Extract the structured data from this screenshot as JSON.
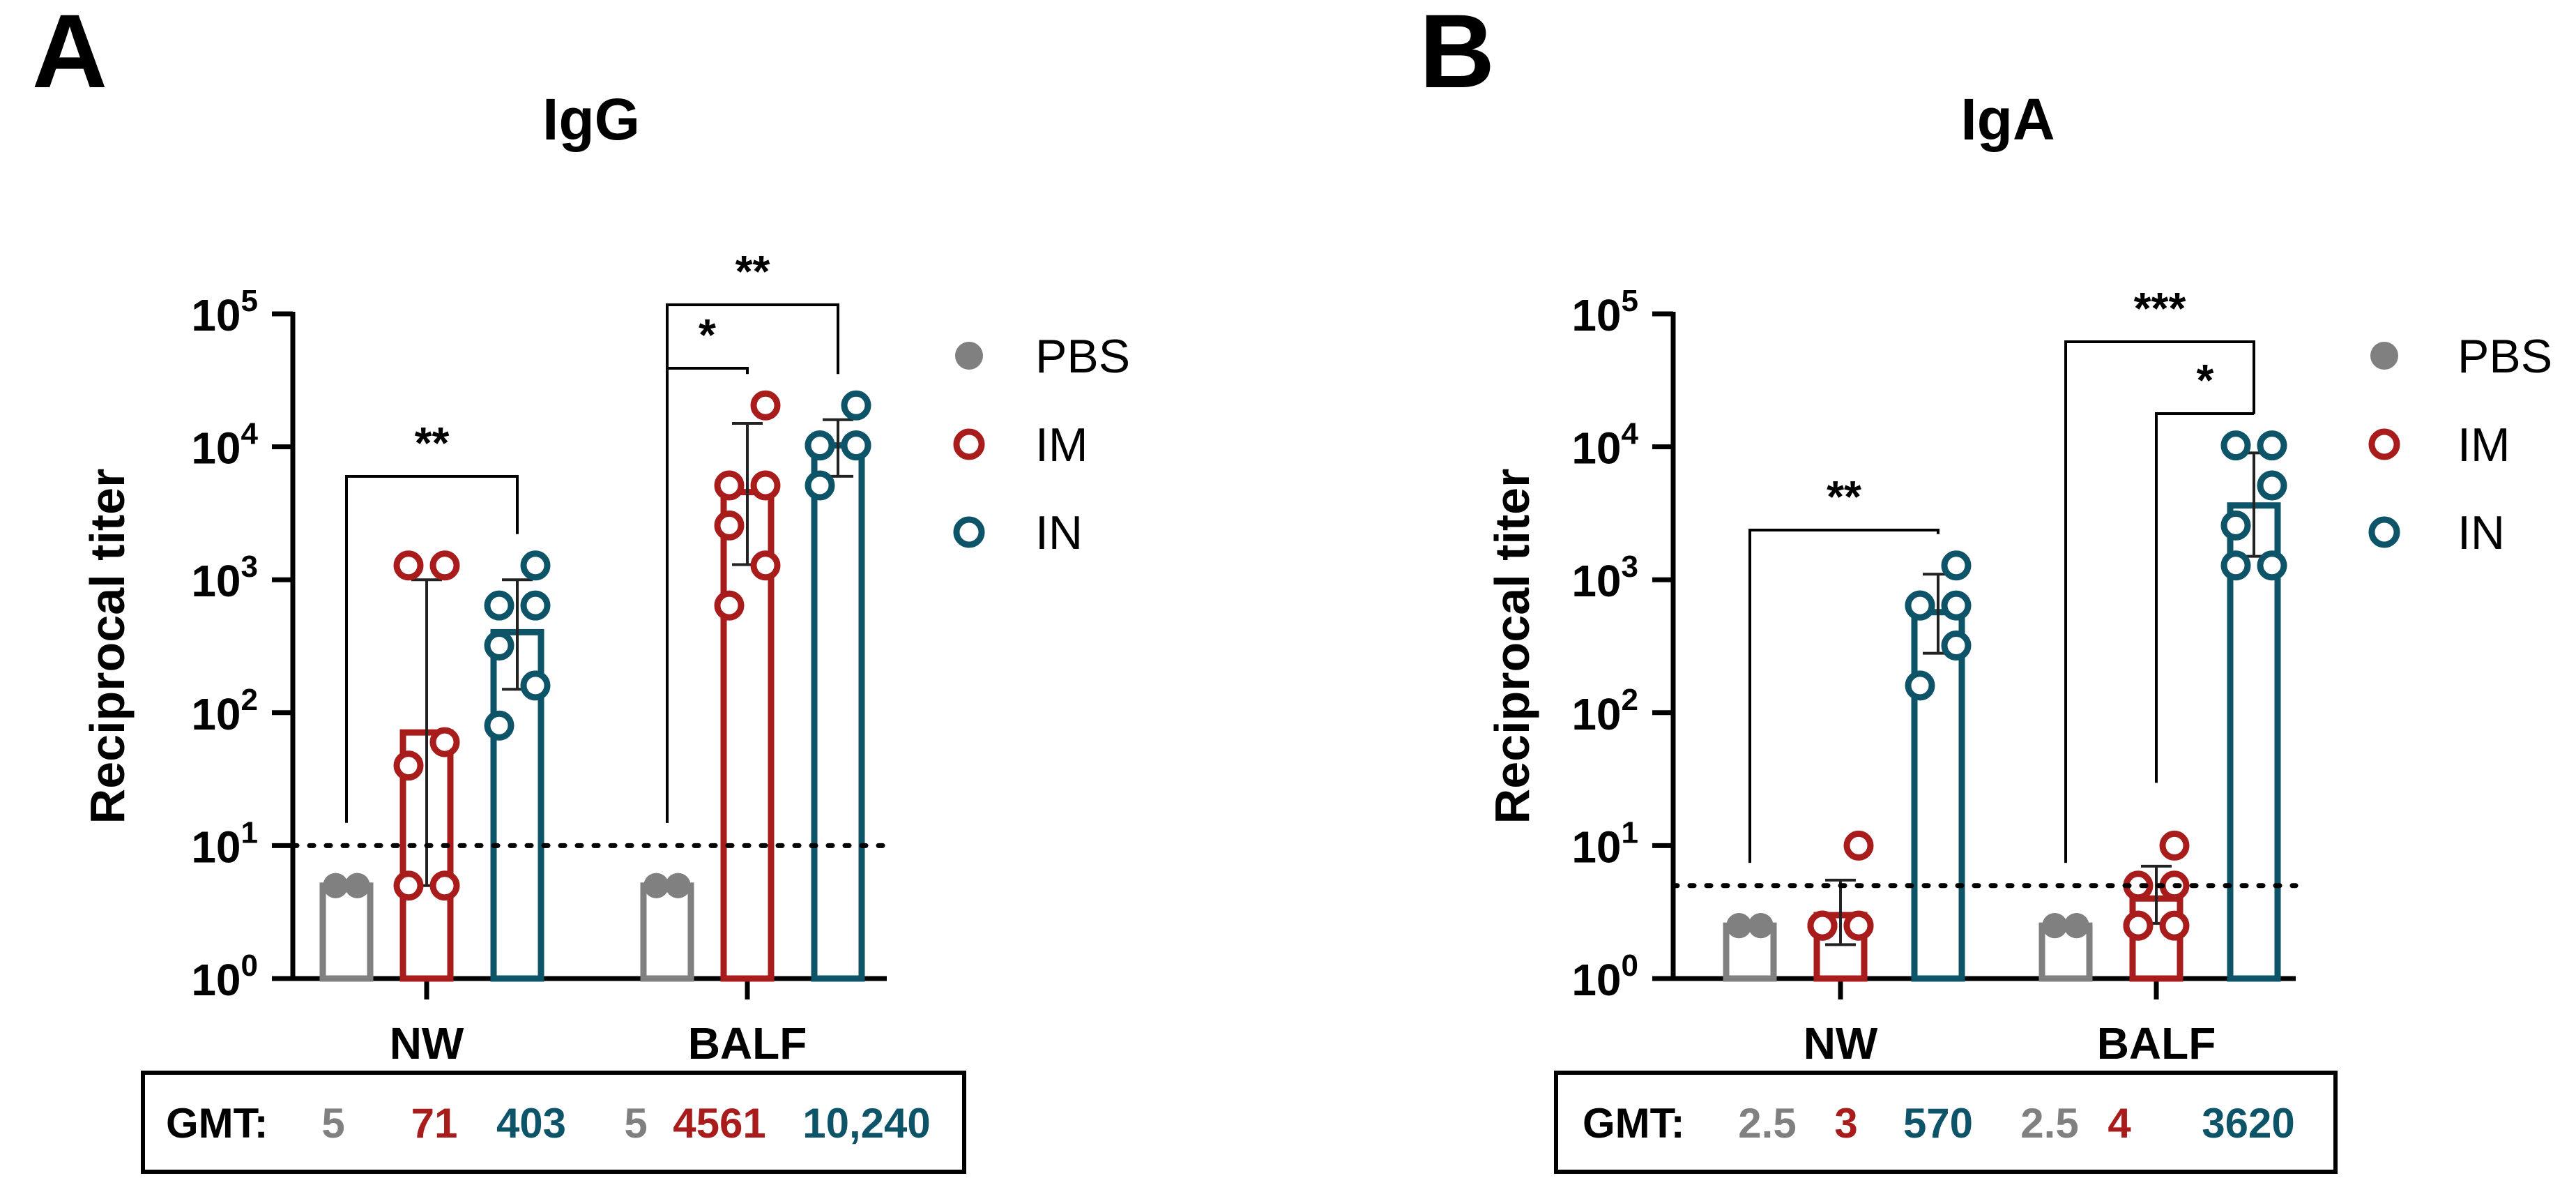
{
  "colors": {
    "pbs": "#808080",
    "im": "#a81c1c",
    "in": "#0e5468",
    "axis": "#000000"
  },
  "chart_data": [
    {
      "type": "bar",
      "panel_label": "A",
      "title": "IgG",
      "ylabel": "Reciprocal titer",
      "xlabel": "",
      "yscale": "log10",
      "ylim": [
        1,
        100000
      ],
      "y_ticks": [
        {
          "base": "10",
          "exp": "0"
        },
        {
          "base": "10",
          "exp": "1"
        },
        {
          "base": "10",
          "exp": "2"
        },
        {
          "base": "10",
          "exp": "3"
        },
        {
          "base": "10",
          "exp": "4"
        },
        {
          "base": "10",
          "exp": "5"
        }
      ],
      "categories": [
        "NW",
        "BALF"
      ],
      "limit_of_detection": 10,
      "series": [
        {
          "name": "PBS",
          "marker": "filled-circle",
          "values": [
            5,
            5
          ],
          "error_low": [
            5,
            5
          ],
          "error_high": [
            5,
            5
          ],
          "points": [
            [
              5,
              5,
              5,
              5,
              5,
              5
            ],
            [
              5,
              5,
              5,
              5,
              5,
              5
            ]
          ]
        },
        {
          "name": "IM",
          "marker": "open-circle",
          "values": [
            71,
            4561
          ],
          "error_low": [
            5,
            1300
          ],
          "error_high": [
            1000,
            15000
          ],
          "points": [
            [
              5,
              5,
              40,
              60,
              1280,
              1280
            ],
            [
              640,
              1280,
              2560,
              5120,
              5120,
              20480
            ]
          ]
        },
        {
          "name": "IN",
          "marker": "open-circle",
          "values": [
            403,
            10240
          ],
          "error_low": [
            150,
            6000
          ],
          "error_high": [
            1000,
            16000
          ],
          "points": [
            [
              80,
              160,
              320,
              640,
              640,
              1280
            ],
            [
              5120,
              10240,
              10240,
              10240,
              10240,
              20480
            ]
          ]
        }
      ],
      "significance": [
        {
          "category": "NW",
          "from": "PBS",
          "to": "IN",
          "label": "**"
        },
        {
          "category": "BALF",
          "from": "PBS",
          "to": "IM",
          "label": "*"
        },
        {
          "category": "BALF",
          "from": "PBS",
          "to": "IN",
          "label": "**"
        }
      ],
      "legend": {
        "position": "right",
        "entries": [
          "PBS",
          "IM",
          "IN"
        ]
      },
      "gmt_table": {
        "label": "GMT:",
        "values": [
          "5",
          "71",
          "403",
          "5",
          "4561",
          "10,240"
        ]
      }
    },
    {
      "type": "bar",
      "panel_label": "B",
      "title": "IgA",
      "ylabel": "Reciprocal titer",
      "xlabel": "",
      "yscale": "log10",
      "ylim": [
        1,
        100000
      ],
      "y_ticks": [
        {
          "base": "10",
          "exp": "0"
        },
        {
          "base": "10",
          "exp": "1"
        },
        {
          "base": "10",
          "exp": "2"
        },
        {
          "base": "10",
          "exp": "3"
        },
        {
          "base": "10",
          "exp": "4"
        },
        {
          "base": "10",
          "exp": "5"
        }
      ],
      "categories": [
        "NW",
        "BALF"
      ],
      "limit_of_detection": 5,
      "series": [
        {
          "name": "PBS",
          "marker": "filled-circle",
          "values": [
            2.5,
            2.5
          ],
          "error_low": [
            2.5,
            2.5
          ],
          "error_high": [
            2.5,
            2.5
          ],
          "points": [
            [
              2.5,
              2.5,
              2.5,
              2.5,
              2.5,
              2.5
            ],
            [
              2.5,
              2.5,
              2.5,
              2.5,
              2.5,
              2.5
            ]
          ]
        },
        {
          "name": "IM",
          "marker": "open-circle",
          "values": [
            3,
            4
          ],
          "error_low": [
            1.8,
            2.6
          ],
          "error_high": [
            5.5,
            7
          ],
          "points": [
            [
              2.5,
              2.5,
              2.5,
              2.5,
              2.5,
              10
            ],
            [
              2.5,
              2.5,
              2.5,
              5,
              5,
              10
            ]
          ]
        },
        {
          "name": "IN",
          "marker": "open-circle",
          "values": [
            570,
            3620
          ],
          "error_low": [
            280,
            1500
          ],
          "error_high": [
            1100,
            9000
          ],
          "points": [
            [
              160,
              320,
              640,
              640,
              640,
              1280
            ],
            [
              1280,
              1280,
              2560,
              5120,
              10240,
              10240
            ]
          ]
        }
      ],
      "significance": [
        {
          "category": "NW",
          "from": "PBS",
          "to": "IN",
          "label": "**"
        },
        {
          "category": "BALF",
          "from": "PBS",
          "to": "IN",
          "label": "***"
        },
        {
          "category": "BALF",
          "from": "IM",
          "to": "IN",
          "label": "*"
        }
      ],
      "legend": {
        "position": "right",
        "entries": [
          "PBS",
          "IM",
          "IN"
        ]
      },
      "gmt_table": {
        "label": "GMT:",
        "values": [
          "2.5",
          "3",
          "570",
          "2.5",
          "4",
          "3620"
        ]
      }
    }
  ]
}
